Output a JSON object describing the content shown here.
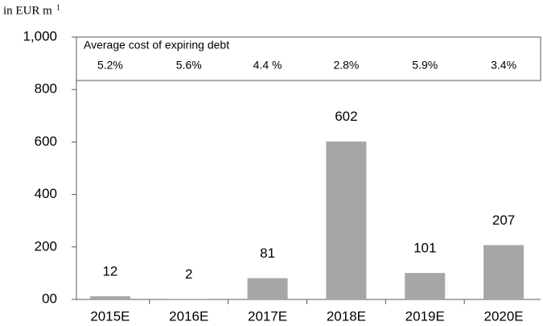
{
  "chart_data": {
    "type": "bar",
    "y_axis_label": "in EUR m",
    "y_axis_label_note": "1",
    "inset_title": "Average cost of expiring debt",
    "inset_values": [
      "5.2%",
      "5.6%",
      "4.4 %",
      "2.8%",
      "5.9%",
      "3.4%"
    ],
    "categories": [
      "2015E",
      "2016E",
      "2017E",
      "2018E",
      "2019E",
      "2020E"
    ],
    "values": [
      12,
      2,
      81,
      602,
      101,
      207
    ],
    "color": "#a6a6a6",
    "ylim": [
      0,
      1000
    ],
    "yticks": [
      {
        "value": 0,
        "label": "00"
      },
      200,
      400,
      600,
      800,
      {
        "value": 1000,
        "label": "1,000"
      }
    ],
    "grid": false
  }
}
